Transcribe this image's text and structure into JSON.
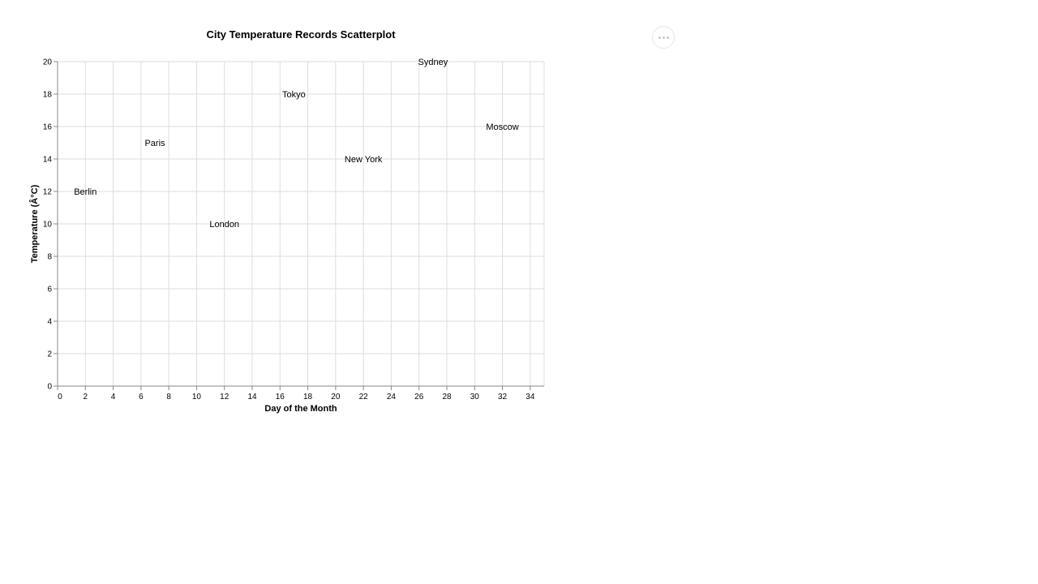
{
  "chart_data": {
    "type": "scatter",
    "title": "City Temperature Records Scatterplot",
    "xlabel": "Day of the Month",
    "ylabel": "Temperature (Â°C)",
    "xlim": [
      0,
      35
    ],
    "ylim": [
      0,
      20
    ],
    "xticks": [
      0,
      2,
      4,
      6,
      8,
      10,
      12,
      14,
      16,
      18,
      20,
      22,
      24,
      26,
      28,
      30,
      32,
      34
    ],
    "yticks": [
      0,
      2,
      4,
      6,
      8,
      10,
      12,
      14,
      16,
      18,
      20
    ],
    "grid": true,
    "points": [
      {
        "label": "Berlin",
        "x": 2,
        "y": 12
      },
      {
        "label": "Paris",
        "x": 7,
        "y": 15
      },
      {
        "label": "London",
        "x": 12,
        "y": 10
      },
      {
        "label": "Tokyo",
        "x": 17,
        "y": 18
      },
      {
        "label": "New York",
        "x": 22,
        "y": 14
      },
      {
        "label": "Sydney",
        "x": 27,
        "y": 20
      },
      {
        "label": "Moscow",
        "x": 32,
        "y": 16
      }
    ]
  },
  "menu": {
    "icon": "ellipsis-icon"
  }
}
